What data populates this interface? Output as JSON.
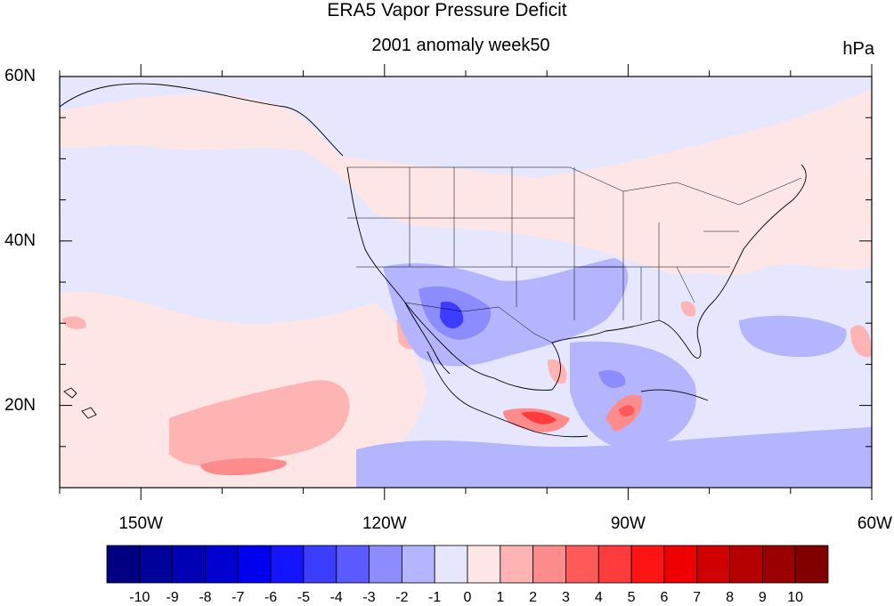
{
  "title": "ERA5 Vapor Pressure Deficit",
  "subtitle": "2001 anomaly week50",
  "units": "hPa",
  "map": {
    "lon_range": [
      -160,
      -60
    ],
    "lat_range": [
      10,
      60
    ],
    "lon_ticks": [
      {
        "label": "150W",
        "lon": -150
      },
      {
        "label": "120W",
        "lon": -120
      },
      {
        "label": "90W",
        "lon": -90
      },
      {
        "label": "60W",
        "lon": -60
      }
    ],
    "lat_ticks": [
      {
        "label": "60N",
        "lat": 60
      },
      {
        "label": "40N",
        "lat": 40
      },
      {
        "label": "20N",
        "lat": 20
      }
    ],
    "background_anomaly": 0
  },
  "colorbar": {
    "labels": [
      "-10",
      "-9",
      "-8",
      "-7",
      "-6",
      "-5",
      "-4",
      "-3",
      "-2",
      "-1",
      "0",
      "1",
      "2",
      "3",
      "4",
      "5",
      "6",
      "7",
      "8",
      "9",
      "10"
    ],
    "colors": [
      "#000080",
      "#00009b",
      "#0000b4",
      "#0000d0",
      "#0000ee",
      "#1414ff",
      "#3c3cff",
      "#5a5aff",
      "#8c8cff",
      "#b4b4ff",
      "#e6e6ff",
      "#ffe6e6",
      "#ffb4b4",
      "#ff8c8c",
      "#ff5a5a",
      "#ff3c3c",
      "#ff1414",
      "#ee0000",
      "#d00000",
      "#b40000",
      "#9b0000",
      "#800000"
    ]
  },
  "regions": [
    {
      "name": "north-pacific-positive",
      "anomaly": 0.5,
      "color": "#ffe6e6"
    },
    {
      "name": "eastern-pacific-negative",
      "anomaly": -0.5,
      "color": "#e6e6ff"
    },
    {
      "name": "subtropical-pacific-positive",
      "anomaly": 1.5,
      "color": "#ffb4b4"
    },
    {
      "name": "southwest-us-negative-core",
      "anomaly": -5,
      "color": "#3c3cff"
    },
    {
      "name": "southern-mexico-positive-core",
      "anomaly": 4.5,
      "color": "#ff3c3c"
    }
  ]
}
